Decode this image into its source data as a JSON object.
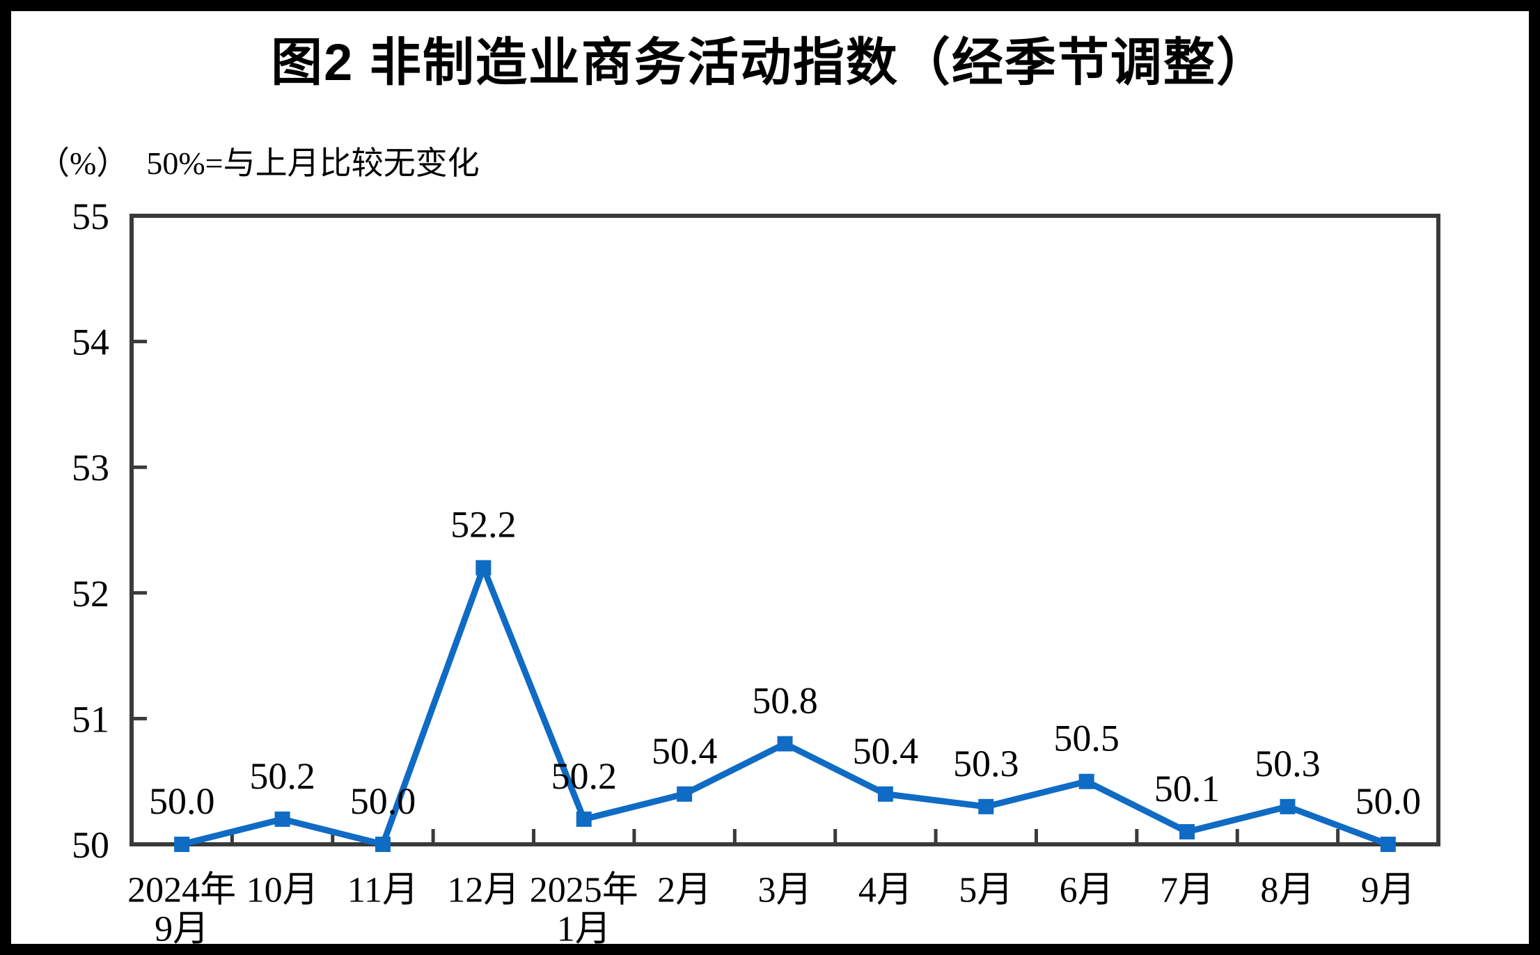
{
  "title": "图2  非制造业商务活动指数（经季节调整）",
  "subtitle": {
    "unit": "（%）",
    "note": "50%=与上月比较无变化"
  },
  "chart_data": {
    "type": "line",
    "title": "图2 非制造业商务活动指数（经季节调整）",
    "ylabel": "（%）",
    "annotation": "50%=与上月比较无变化",
    "categories": [
      [
        "2024年",
        "9月"
      ],
      [
        "10月"
      ],
      [
        "11月"
      ],
      [
        "12月"
      ],
      [
        "2025年",
        "1月"
      ],
      [
        "2月"
      ],
      [
        "3月"
      ],
      [
        "4月"
      ],
      [
        "5月"
      ],
      [
        "6月"
      ],
      [
        "7月"
      ],
      [
        "8月"
      ],
      [
        "9月"
      ]
    ],
    "series": [
      {
        "name": "非制造业商务活动指数",
        "values": [
          50.0,
          50.2,
          50.0,
          52.2,
          50.2,
          50.4,
          50.8,
          50.4,
          50.3,
          50.5,
          50.1,
          50.3,
          50.0
        ]
      }
    ],
    "ylim": [
      50,
      55
    ],
    "yticks": [
      50,
      51,
      52,
      53,
      54,
      55
    ],
    "grid": false,
    "legend_position": "none",
    "marker": "square",
    "colors": {
      "line": "#0f6bc4",
      "axis": "#3a3a3a",
      "text": "#000000",
      "background": "#ffffff",
      "frame": "#000000"
    }
  }
}
